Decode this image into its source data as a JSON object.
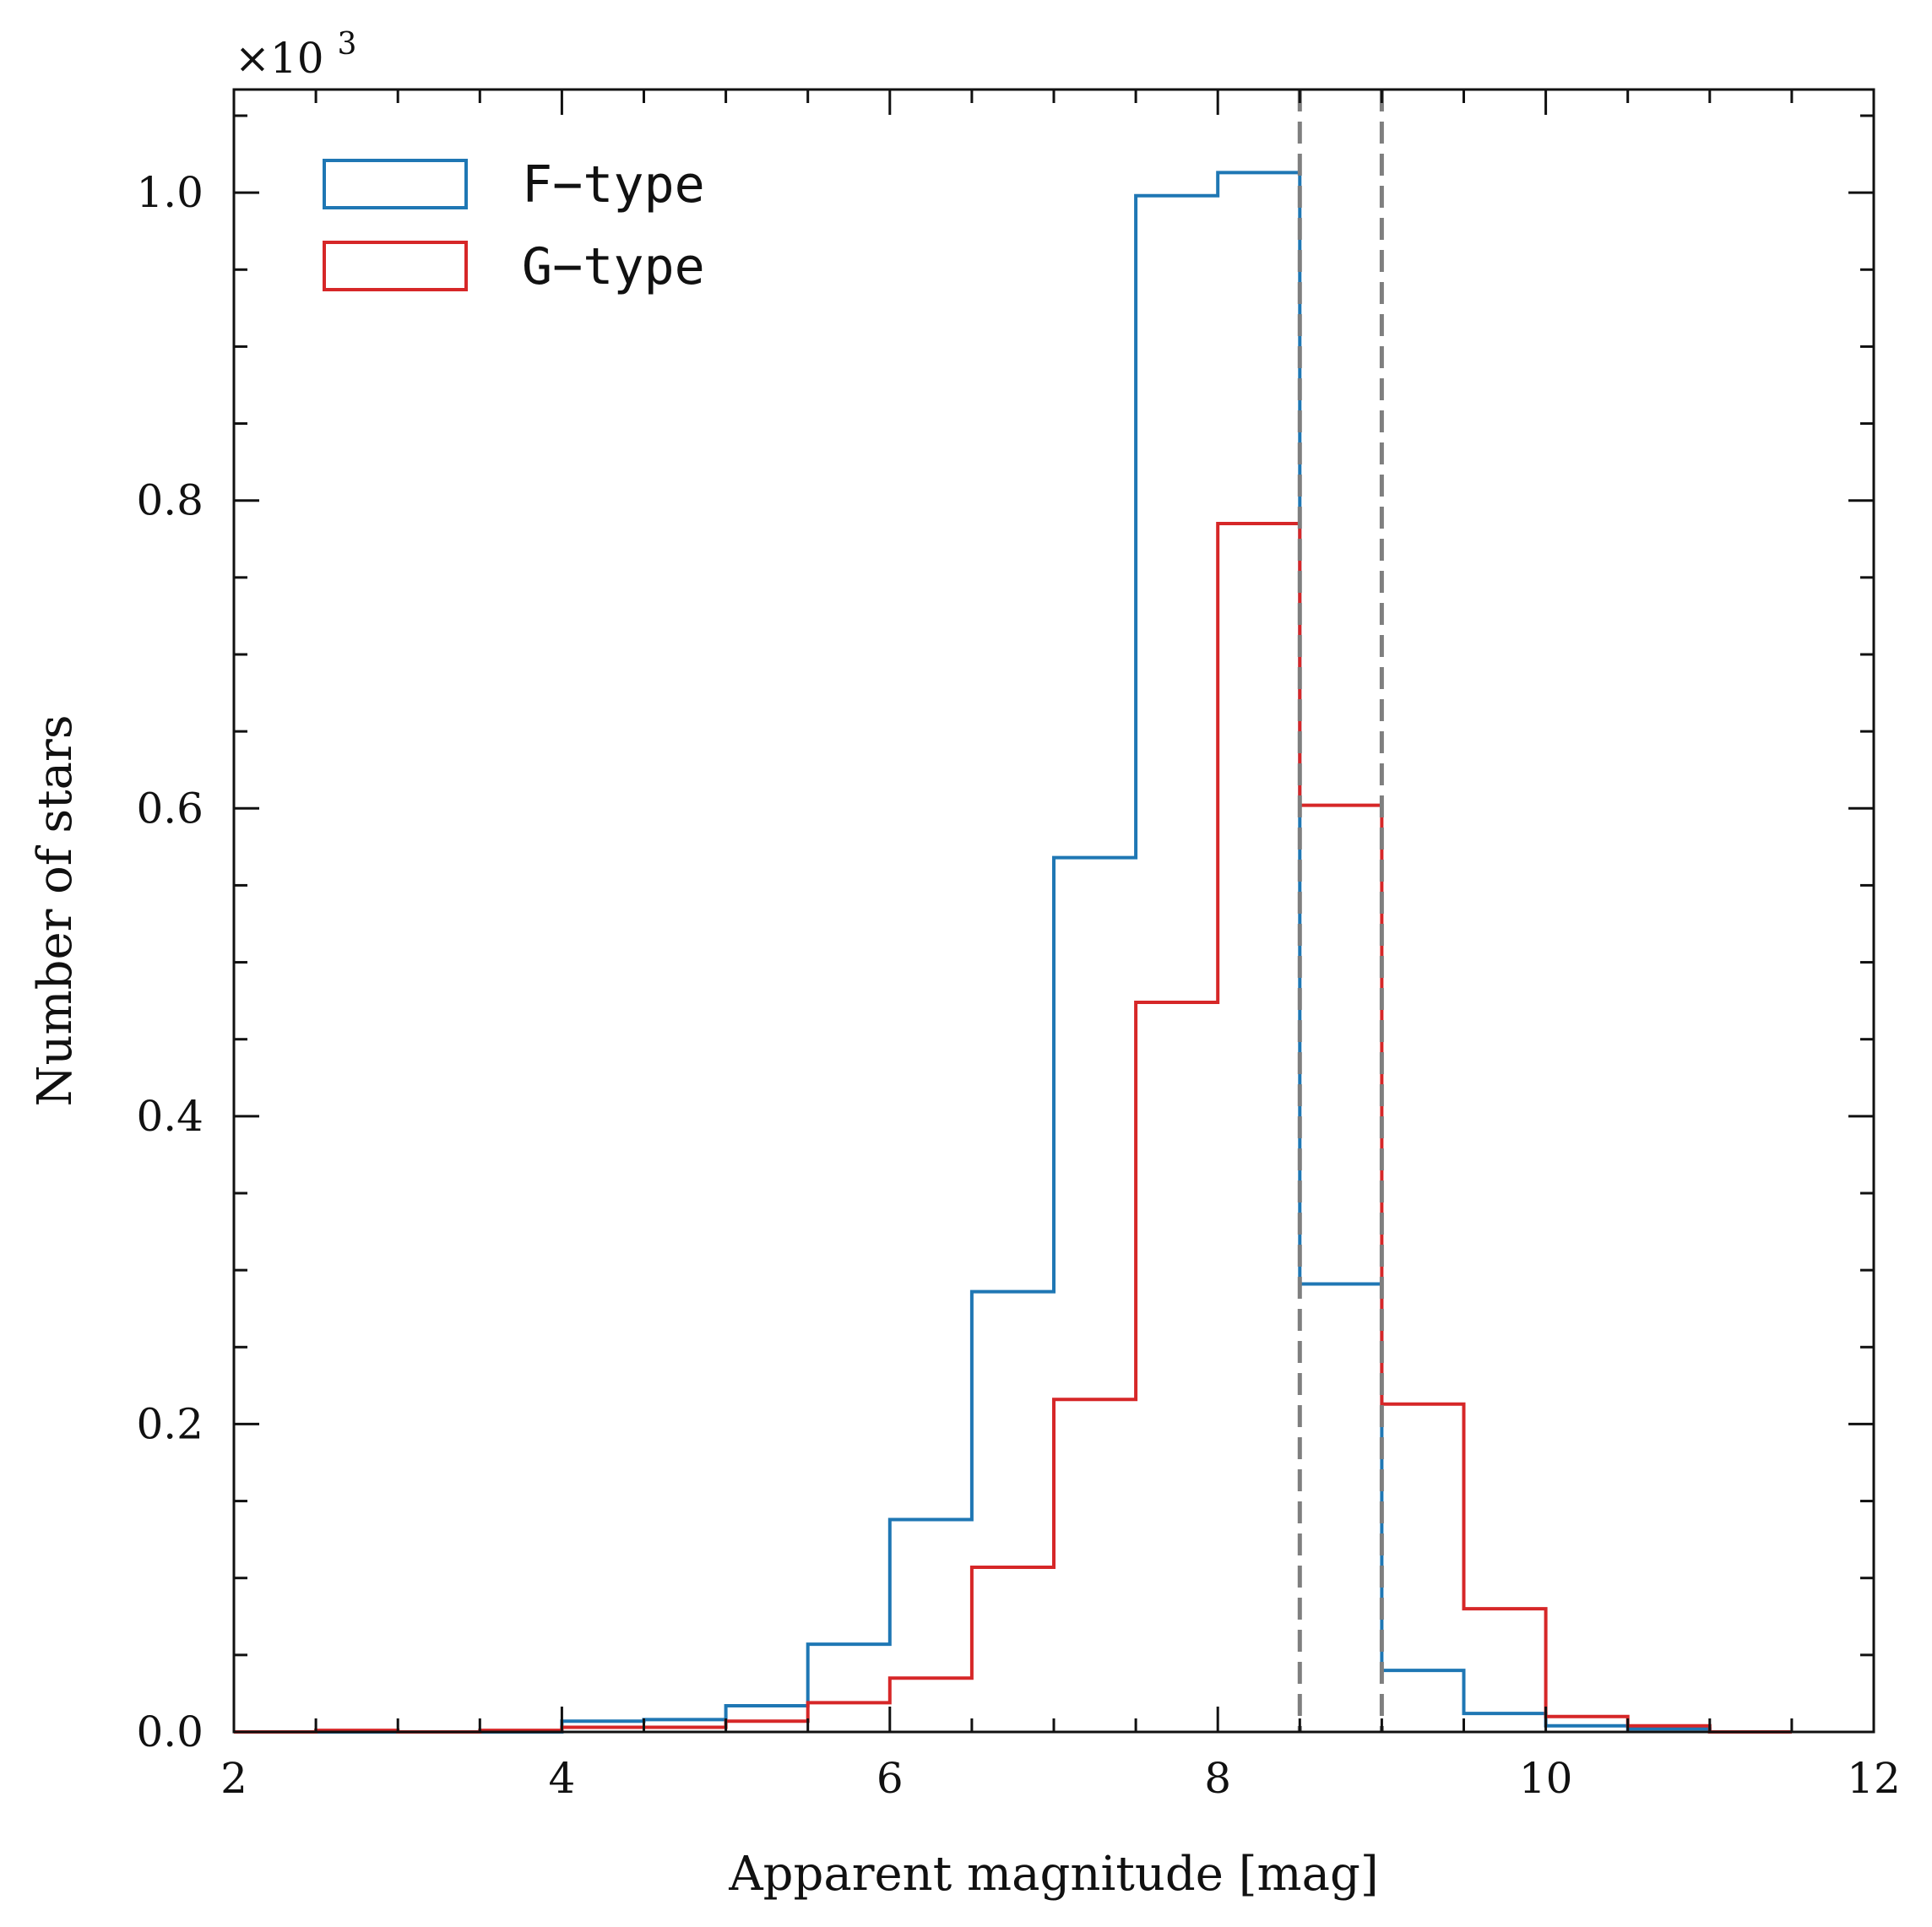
{
  "chart_data": {
    "type": "histogram",
    "xlabel": "Apparent magnitude [mag]",
    "ylabel": "Number of stars",
    "y_offset_label": "×10",
    "y_offset_exponent": "3",
    "xlim": [
      2,
      12
    ],
    "ylim": [
      0,
      1.067
    ],
    "x_ticks": [
      2,
      4,
      6,
      8,
      10,
      12
    ],
    "x_tick_labels": [
      "2",
      "4",
      "6",
      "8",
      "10",
      "12"
    ],
    "x_minor_step": 0.5,
    "y_ticks": [
      0.0,
      0.2,
      0.4,
      0.6,
      0.8,
      1.0
    ],
    "y_tick_labels": [
      "0.0",
      "0.2",
      "0.4",
      "0.6",
      "0.8",
      "1.0"
    ],
    "y_minor_step": 0.05,
    "grid": false,
    "legend_position": "top-left",
    "bin_edges": [
      2.0,
      2.5,
      3.0,
      3.5,
      4.0,
      4.5,
      5.0,
      5.5,
      6.0,
      6.5,
      7.0,
      7.5,
      8.0,
      8.5,
      9.0,
      9.5,
      10.0,
      10.5,
      11.0,
      11.5
    ],
    "series": [
      {
        "name": "F−type",
        "color": "#1f77b4",
        "values": [
          0.0,
          0.0,
          0.0,
          0.0,
          0.007,
          0.008,
          0.017,
          0.057,
          0.138,
          0.286,
          0.568,
          0.998,
          1.013,
          0.291,
          0.04,
          0.012,
          0.004,
          0.002,
          0.0
        ]
      },
      {
        "name": "G−type",
        "color": "#d62728",
        "values": [
          0.0,
          0.001,
          0.0,
          0.001,
          0.003,
          0.003,
          0.007,
          0.019,
          0.035,
          0.107,
          0.216,
          0.474,
          0.785,
          0.602,
          0.213,
          0.08,
          0.01,
          0.004,
          0.0
        ]
      }
    ],
    "vertical_lines": [
      {
        "x": 8.5,
        "color": "#7f7f7f",
        "style": "dashed"
      },
      {
        "x": 9.0,
        "color": "#7f7f7f",
        "style": "dashed"
      }
    ]
  }
}
